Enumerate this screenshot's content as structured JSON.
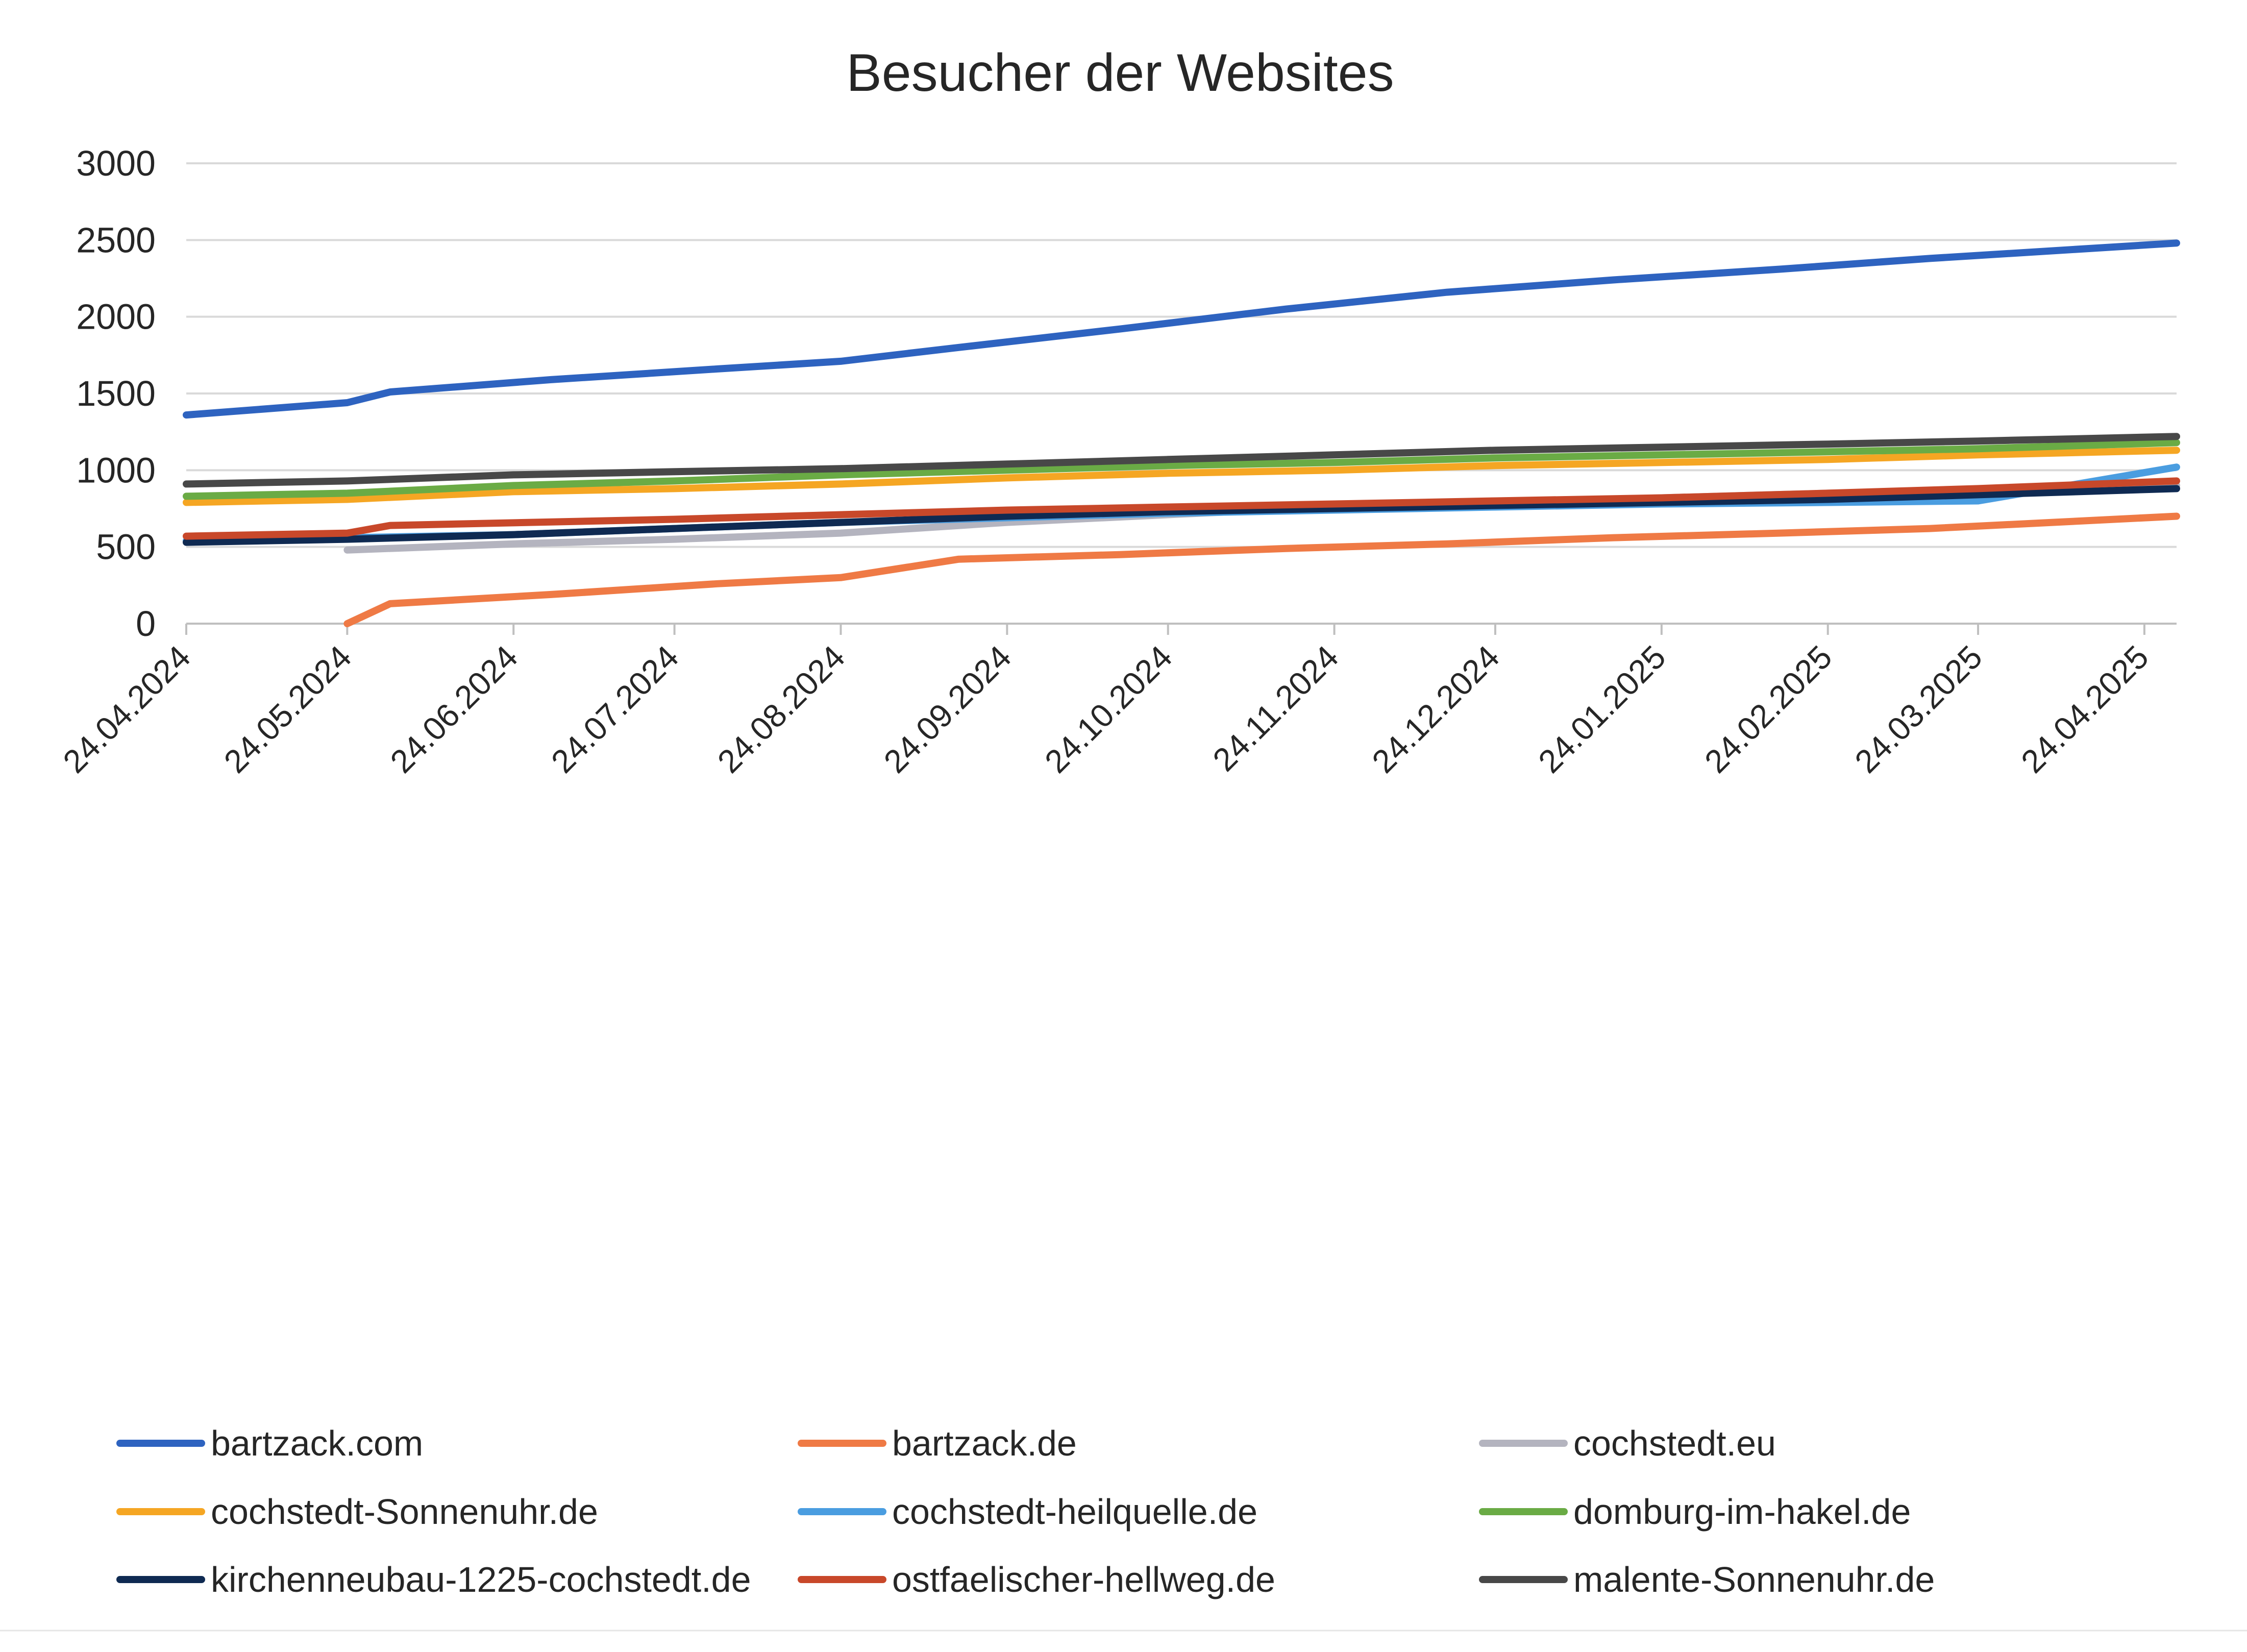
{
  "chart_data": {
    "type": "line",
    "title": "Besucher der Websites",
    "xlabel": "",
    "ylabel": "",
    "ylim": [
      0,
      3000
    ],
    "yticks": [
      "3000",
      "2500",
      "2000",
      "1500",
      "1000",
      "500",
      "0"
    ],
    "ytick_values": [
      3000,
      2500,
      2000,
      1500,
      1000,
      500,
      0
    ],
    "x_tick_labels": [
      "24.04.2024",
      "24.05.2024",
      "24.06.2024",
      "24.07.2024",
      "24.08.2024",
      "24.09.2024",
      "24.10.2024",
      "24.11.2024",
      "24.12.2024",
      "24.01.2025",
      "24.02.2025",
      "24.03.2025",
      "24.04.2025"
    ],
    "x_range": [
      "2024-04-24",
      "2025-04-30"
    ],
    "grid": true,
    "legend_position": "bottom",
    "series": [
      {
        "name": "bartzack.com",
        "color": "#2e63c0",
        "points": [
          [
            "2024-04-24",
            1360
          ],
          [
            "2024-05-24",
            1440
          ],
          [
            "2024-06-01",
            1510
          ],
          [
            "2024-07-01",
            1590
          ],
          [
            "2024-08-01",
            1660
          ],
          [
            "2024-08-24",
            1710
          ],
          [
            "2024-09-15",
            1800
          ],
          [
            "2024-10-15",
            1920
          ],
          [
            "2024-11-15",
            2050
          ],
          [
            "2024-12-15",
            2160
          ],
          [
            "2025-01-15",
            2240
          ],
          [
            "2025-02-15",
            2310
          ],
          [
            "2025-03-15",
            2380
          ],
          [
            "2025-04-30",
            2480
          ]
        ]
      },
      {
        "name": "bartzack.de",
        "color": "#ef7a45",
        "points": [
          [
            "2024-05-24",
            0
          ],
          [
            "2024-06-01",
            130
          ],
          [
            "2024-07-01",
            190
          ],
          [
            "2024-08-01",
            260
          ],
          [
            "2024-08-24",
            300
          ],
          [
            "2024-09-15",
            420
          ],
          [
            "2024-10-15",
            450
          ],
          [
            "2024-11-15",
            490
          ],
          [
            "2024-12-15",
            520
          ],
          [
            "2025-01-15",
            560
          ],
          [
            "2025-02-15",
            590
          ],
          [
            "2025-03-15",
            620
          ],
          [
            "2025-04-30",
            700
          ]
        ]
      },
      {
        "name": "cochstedt.eu",
        "color": "#b4b4bf",
        "points": [
          [
            "2024-05-24",
            480
          ],
          [
            "2024-06-24",
            520
          ],
          [
            "2024-07-24",
            550
          ],
          [
            "2024-08-24",
            590
          ],
          [
            "2024-09-24",
            660
          ],
          [
            "2024-10-24",
            710
          ],
          [
            "2024-11-24",
            760
          ],
          [
            "2024-12-24",
            790
          ],
          [
            "2025-01-24",
            820
          ],
          [
            "2025-02-24",
            850
          ],
          [
            "2025-03-24",
            870
          ],
          [
            "2025-04-30",
            900
          ]
        ]
      },
      {
        "name": "cochstedt-Sonnenuhr.de",
        "color": "#f5a623",
        "points": [
          [
            "2024-04-24",
            790
          ],
          [
            "2024-05-24",
            810
          ],
          [
            "2024-06-24",
            860
          ],
          [
            "2024-07-24",
            880
          ],
          [
            "2024-08-24",
            910
          ],
          [
            "2024-09-24",
            950
          ],
          [
            "2024-10-24",
            980
          ],
          [
            "2024-11-24",
            1000
          ],
          [
            "2024-12-24",
            1030
          ],
          [
            "2025-01-24",
            1050
          ],
          [
            "2025-02-24",
            1070
          ],
          [
            "2025-03-24",
            1100
          ],
          [
            "2025-04-30",
            1130
          ]
        ]
      },
      {
        "name": "cochstedt-heilquelle.de",
        "color": "#4a9de0",
        "points": [
          [
            "2024-04-24",
            540
          ],
          [
            "2024-05-24",
            560
          ],
          [
            "2024-06-24",
            580
          ],
          [
            "2024-07-24",
            620
          ],
          [
            "2024-08-24",
            660
          ],
          [
            "2024-09-24",
            690
          ],
          [
            "2024-10-24",
            720
          ],
          [
            "2024-11-24",
            740
          ],
          [
            "2024-12-24",
            760
          ],
          [
            "2025-01-24",
            780
          ],
          [
            "2025-02-24",
            790
          ],
          [
            "2025-03-24",
            800
          ],
          [
            "2025-04-30",
            1020
          ]
        ]
      },
      {
        "name": "domburg-im-hakel.de",
        "color": "#6aab45",
        "points": [
          [
            "2024-04-24",
            830
          ],
          [
            "2024-05-24",
            850
          ],
          [
            "2024-06-24",
            900
          ],
          [
            "2024-07-24",
            930
          ],
          [
            "2024-08-24",
            970
          ],
          [
            "2024-09-24",
            1000
          ],
          [
            "2024-10-24",
            1030
          ],
          [
            "2024-11-24",
            1050
          ],
          [
            "2024-12-24",
            1080
          ],
          [
            "2025-01-24",
            1100
          ],
          [
            "2025-02-24",
            1120
          ],
          [
            "2025-03-24",
            1140
          ],
          [
            "2025-04-30",
            1180
          ]
        ]
      },
      {
        "name": "kirchenneubau-1225-cochstedt.de",
        "color": "#0f2a52",
        "points": [
          [
            "2024-04-24",
            530
          ],
          [
            "2024-05-24",
            550
          ],
          [
            "2024-06-24",
            580
          ],
          [
            "2024-07-24",
            620
          ],
          [
            "2024-08-24",
            660
          ],
          [
            "2024-09-24",
            700
          ],
          [
            "2024-10-24",
            730
          ],
          [
            "2024-11-24",
            750
          ],
          [
            "2024-12-24",
            770
          ],
          [
            "2025-01-24",
            790
          ],
          [
            "2025-02-24",
            810
          ],
          [
            "2025-03-24",
            840
          ],
          [
            "2025-04-30",
            880
          ]
        ]
      },
      {
        "name": "ostfaelischer-hellweg.de",
        "color": "#c8482a",
        "points": [
          [
            "2024-04-24",
            570
          ],
          [
            "2024-05-24",
            590
          ],
          [
            "2024-06-01",
            640
          ],
          [
            "2024-07-24",
            680
          ],
          [
            "2024-08-24",
            710
          ],
          [
            "2024-09-24",
            740
          ],
          [
            "2024-10-24",
            760
          ],
          [
            "2024-11-24",
            780
          ],
          [
            "2024-12-24",
            800
          ],
          [
            "2025-01-24",
            820
          ],
          [
            "2025-02-24",
            850
          ],
          [
            "2025-03-24",
            880
          ],
          [
            "2025-04-30",
            930
          ]
        ]
      },
      {
        "name": "malente-Sonnenuhr.de",
        "color": "#484848",
        "points": [
          [
            "2024-04-24",
            910
          ],
          [
            "2024-05-24",
            930
          ],
          [
            "2024-06-24",
            970
          ],
          [
            "2024-07-24",
            990
          ],
          [
            "2024-08-24",
            1010
          ],
          [
            "2024-09-24",
            1040
          ],
          [
            "2024-10-24",
            1070
          ],
          [
            "2024-11-24",
            1100
          ],
          [
            "2024-12-24",
            1130
          ],
          [
            "2025-01-24",
            1150
          ],
          [
            "2025-02-24",
            1170
          ],
          [
            "2025-03-24",
            1190
          ],
          [
            "2025-04-30",
            1220
          ]
        ]
      }
    ]
  }
}
